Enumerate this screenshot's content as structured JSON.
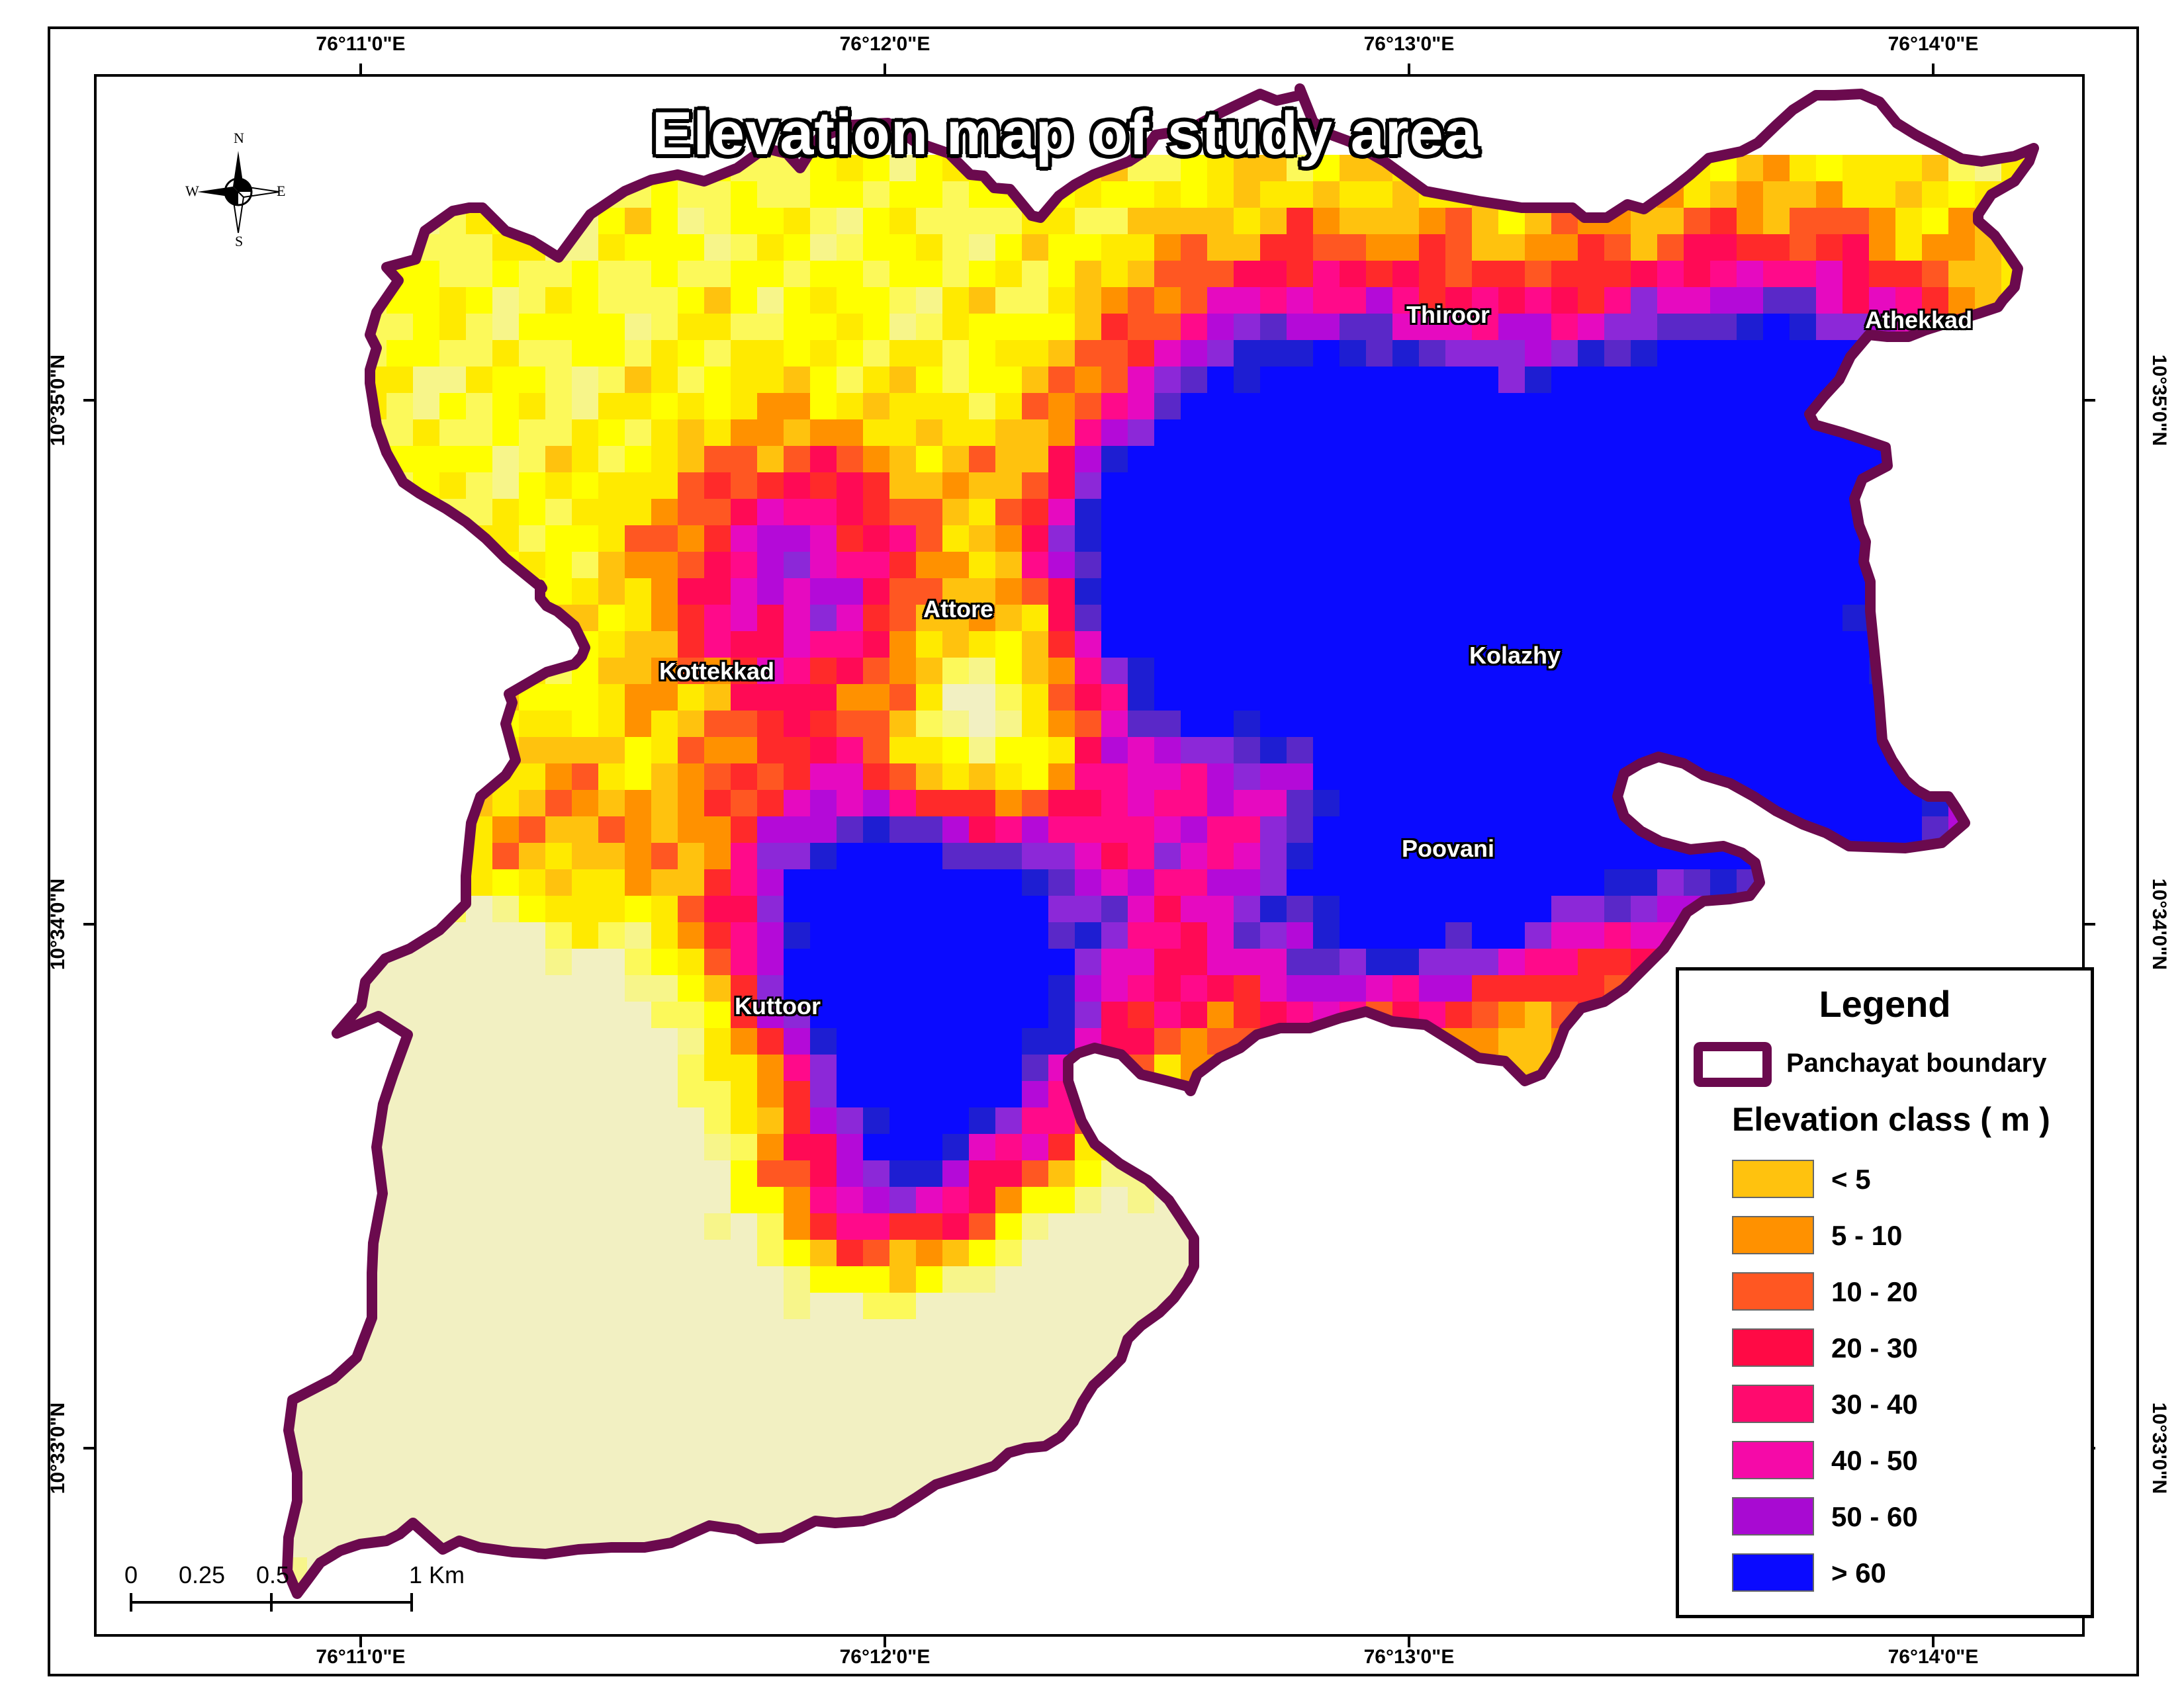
{
  "title": "Elevation map of study area",
  "coords": {
    "top": [
      "76°11'0\"E",
      "76°12'0\"E",
      "76°13'0\"E",
      "76°14'0\"E"
    ],
    "bottom": [
      "76°11'0\"E",
      "76°12'0\"E",
      "76°13'0\"E",
      "76°14'0\"E"
    ],
    "left": [
      "10°35'0\"N",
      "10°34'0\"N",
      "10°33'0\"N"
    ],
    "right": [
      "10°35'0\"N",
      "10°34'0\"N",
      "10°33'0\"N"
    ]
  },
  "compass": {
    "n": "N",
    "s": "S",
    "e": "E",
    "w": "W"
  },
  "places": [
    "Thiroor",
    "Athekkad",
    "Attore",
    "Kottekkad",
    "Kolazhy",
    "Poovani",
    "Kuttoor"
  ],
  "legend": {
    "title": "Legend",
    "boundary_label": "Panchayat boundary",
    "boundary_color": "#6b0a4e",
    "elevation_heading": "Elevation class ( m )",
    "classes": [
      {
        "label": "< 5",
        "color": "#ffc20e"
      },
      {
        "label": "5 - 10",
        "color": "#ff9100"
      },
      {
        "label": "10 - 20",
        "color": "#ff5722"
      },
      {
        "label": "20 - 30",
        "color": "#ff0a45"
      },
      {
        "label": "30 - 40",
        "color": "#ff0a6e"
      },
      {
        "label": "40 - 50",
        "color": "#f50aa8"
      },
      {
        "label": "50 - 60",
        "color": "#a80ad2"
      },
      {
        "label": "> 60",
        "color": "#0a0aff"
      }
    ]
  },
  "scalebar": {
    "labels": [
      "0",
      "0.25",
      "0.5",
      "1 Km"
    ]
  },
  "raster_palette": [
    "#f2f0c2",
    "#f7f58a",
    "#fcf95a",
    "#ffff00",
    "#ffea00",
    "#ffc20e",
    "#ff9100",
    "#ff5722",
    "#ff2a2a",
    "#ff0a55",
    "#ff0a8a",
    "#e60ac0",
    "#b40ad8",
    "#8c28d8",
    "#5a28c8",
    "#1e1ed2",
    "#0a0aff"
  ]
}
